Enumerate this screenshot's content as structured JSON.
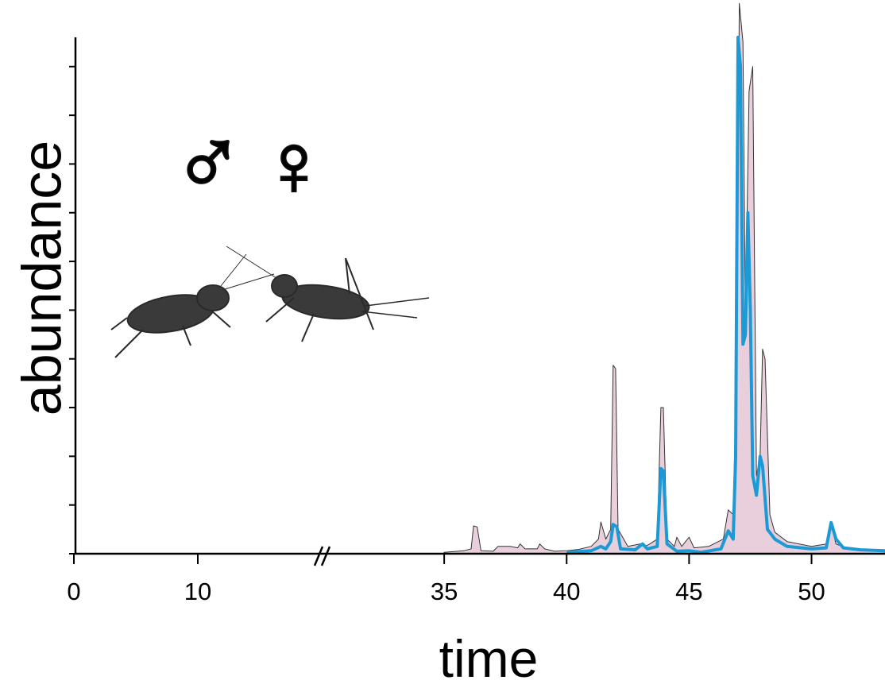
{
  "chart_data": {
    "type": "line",
    "xlabel": "time",
    "ylabel": "abundance",
    "xlim": [
      0,
      53
    ],
    "ylim": [
      0,
      106
    ],
    "axis_break": [
      20,
      30
    ],
    "xticks": [
      0,
      10,
      35,
      40,
      45,
      50
    ],
    "yticks": [
      0,
      10,
      20,
      30,
      40,
      50,
      60,
      70,
      80,
      90,
      100
    ],
    "series": [
      {
        "name": "♀",
        "color": "#e9cfdb",
        "x": [
          35.0,
          35.8,
          36.1,
          36.2,
          36.35,
          36.5,
          37.0,
          37.2,
          37.7,
          38.0,
          38.1,
          38.3,
          38.8,
          38.9,
          39.1,
          39.5,
          40.0,
          40.5,
          41.0,
          41.3,
          41.4,
          41.6,
          41.8,
          41.9,
          42.0,
          42.1,
          42.5,
          43.0,
          43.2,
          43.4,
          43.7,
          43.85,
          43.95,
          44.1,
          44.4,
          44.5,
          44.7,
          45.0,
          45.2,
          45.8,
          46.4,
          46.6,
          46.8,
          46.95,
          47.05,
          47.2,
          47.3,
          47.45,
          47.6,
          47.75,
          47.9,
          48.0,
          48.1,
          48.3,
          48.5,
          49.0,
          50.0,
          50.6,
          50.8,
          51.0,
          51.5,
          53.0
        ],
        "values": [
          0.3,
          0.6,
          1,
          5.7,
          5.5,
          0.6,
          0.5,
          1.5,
          1.5,
          1.2,
          2,
          1,
          1,
          2,
          1,
          0.5,
          0.6,
          0.9,
          1.5,
          3,
          6.5,
          3,
          5,
          38.7,
          38,
          5,
          1.5,
          2,
          1.5,
          2,
          3,
          30,
          30,
          3,
          1.5,
          3.4,
          1.5,
          3.4,
          1.2,
          1.5,
          3,
          9,
          8,
          40,
          113,
          105,
          48,
          95,
          100,
          16,
          20,
          42,
          40,
          8,
          4.4,
          2.5,
          1.5,
          2,
          6,
          2,
          1,
          0.5
        ]
      },
      {
        "name": "♂",
        "color": "#1b9ad6",
        "x": [
          40.0,
          41.0,
          41.4,
          41.6,
          41.8,
          41.9,
          42.05,
          42.2,
          42.8,
          43.1,
          43.3,
          43.7,
          43.85,
          43.95,
          44.1,
          44.5,
          45.0,
          45.5,
          46.3,
          46.6,
          46.8,
          46.9,
          47.0,
          47.1,
          47.2,
          47.3,
          47.4,
          47.5,
          47.6,
          47.75,
          47.9,
          48.0,
          48.2,
          48.5,
          49.0,
          50.0,
          50.6,
          50.8,
          51.0,
          51.3,
          52.0,
          53.0
        ],
        "values": [
          0.3,
          0.6,
          1.5,
          1,
          2.5,
          6,
          5.5,
          1,
          0.8,
          2,
          1,
          1.5,
          17.5,
          17,
          2,
          0.5,
          0.6,
          0.3,
          1,
          4.7,
          3,
          20,
          106,
          100,
          43,
          45,
          70,
          50,
          16,
          12,
          20,
          18,
          5,
          3,
          1.5,
          1,
          1.2,
          6.4,
          3,
          1.2,
          0.8,
          0.6
        ]
      }
    ]
  }
}
